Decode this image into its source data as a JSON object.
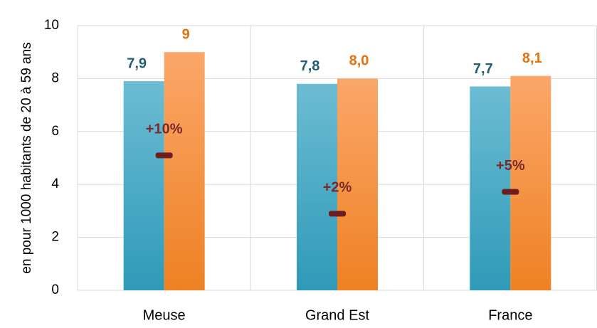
{
  "chart_data": {
    "type": "bar",
    "y_label": "en pour 1000 habitants de 20 à 59 ans",
    "categories": [
      "Meuse",
      "Grand Est",
      "France"
    ],
    "series": [
      {
        "color": "#3aa8c4",
        "label_color": "#215f72",
        "values": [
          7.9,
          7.8,
          7.7
        ],
        "value_labels": [
          "7,9",
          "7,8",
          "7,7"
        ]
      },
      {
        "color": "#f58a2f",
        "label_color": "#e6700c",
        "values": [
          9,
          8.0,
          8.1
        ],
        "value_labels": [
          "9",
          "8,0",
          "8,1"
        ]
      },
      {
        "type": "marker",
        "axis": "y2",
        "color": "#6e1e1e",
        "label_color": "#7a2a2a",
        "values": [
          10,
          2,
          5
        ],
        "value_labels": [
          "+10%",
          "+2%",
          "+5%"
        ]
      }
    ],
    "ylim": [
      0,
      10
    ],
    "yticks": [
      0,
      2,
      4,
      6,
      8,
      10
    ],
    "y2lim": [
      -8.5,
      27.8
    ],
    "grid": true
  }
}
